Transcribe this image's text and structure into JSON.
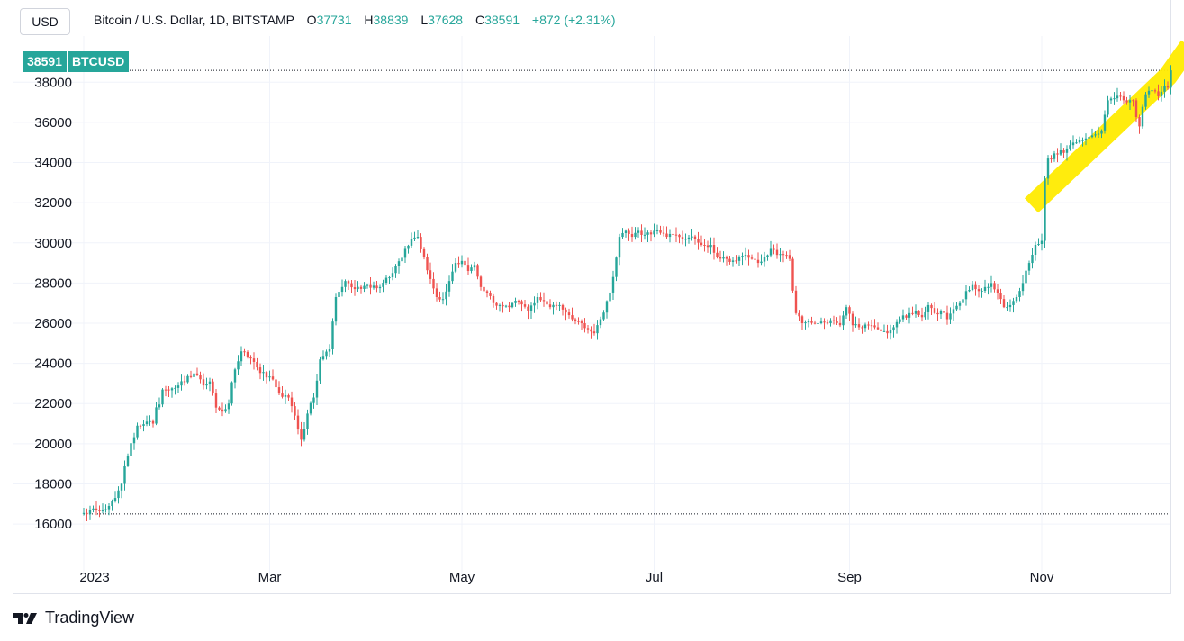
{
  "header": {
    "currency_button": "USD",
    "title": "Bitcoin / U.S. Dollar, 1D, BITSTAMP",
    "open_label": "O",
    "open_value": "37731",
    "high_label": "H",
    "high_value": "38839",
    "low_label": "L",
    "low_value": "37628",
    "close_label": "C",
    "close_value": "38591",
    "change": "+872 (+2.31%)"
  },
  "price_badge": {
    "price": "38591",
    "symbol": "BTCUSD"
  },
  "footer": {
    "brand": "TradingView"
  },
  "colors": {
    "up": "#26a69a",
    "down": "#ef5350",
    "highlight": "#ffeb00",
    "grid": "#f0f3fa"
  },
  "chart_data": {
    "type": "candlestick",
    "y_ticks": [
      16000,
      18000,
      20000,
      22000,
      24000,
      26000,
      28000,
      30000,
      32000,
      34000,
      36000,
      38000
    ],
    "ylim": [
      14300,
      40300
    ],
    "x_labels": [
      {
        "label": "2023",
        "index": 0
      },
      {
        "label": "Mar",
        "index": 59
      },
      {
        "label": "May",
        "index": 120
      },
      {
        "label": "Jul",
        "index": 181
      },
      {
        "label": "Sep",
        "index": 243
      },
      {
        "label": "Nov",
        "index": 304
      }
    ],
    "reference_lines": [
      38591,
      16500
    ],
    "anchors": [
      [
        0,
        16550
      ],
      [
        4,
        16700
      ],
      [
        8,
        16900
      ],
      [
        10,
        17300
      ],
      [
        12,
        18000
      ],
      [
        14,
        19400
      ],
      [
        17,
        20900
      ],
      [
        20,
        21100
      ],
      [
        22,
        21000
      ],
      [
        25,
        22700
      ],
      [
        30,
        22900
      ],
      [
        35,
        23500
      ],
      [
        38,
        22900
      ],
      [
        40,
        23100
      ],
      [
        42,
        21800
      ],
      [
        44,
        21600
      ],
      [
        46,
        22000
      ],
      [
        48,
        23700
      ],
      [
        50,
        24600
      ],
      [
        52,
        24300
      ],
      [
        55,
        23800
      ],
      [
        58,
        23300
      ],
      [
        60,
        23200
      ],
      [
        62,
        22500
      ],
      [
        65,
        22300
      ],
      [
        67,
        21400
      ],
      [
        69,
        20200
      ],
      [
        71,
        21500
      ],
      [
        73,
        22300
      ],
      [
        75,
        24200
      ],
      [
        78,
        24700
      ],
      [
        80,
        27300
      ],
      [
        83,
        28100
      ],
      [
        86,
        27700
      ],
      [
        90,
        27900
      ],
      [
        94,
        27800
      ],
      [
        98,
        28500
      ],
      [
        102,
        29700
      ],
      [
        104,
        30200
      ],
      [
        106,
        30300
      ],
      [
        108,
        29300
      ],
      [
        110,
        28200
      ],
      [
        112,
        27300
      ],
      [
        114,
        27200
      ],
      [
        116,
        28100
      ],
      [
        118,
        29000
      ],
      [
        120,
        29100
      ],
      [
        122,
        28600
      ],
      [
        124,
        28900
      ],
      [
        126,
        27800
      ],
      [
        128,
        27500
      ],
      [
        130,
        27000
      ],
      [
        132,
        26900
      ],
      [
        135,
        26800
      ],
      [
        138,
        27100
      ],
      [
        141,
        26600
      ],
      [
        144,
        27300
      ],
      [
        146,
        27100
      ],
      [
        148,
        26800
      ],
      [
        151,
        26900
      ],
      [
        154,
        26400
      ],
      [
        156,
        26100
      ],
      [
        158,
        26000
      ],
      [
        160,
        25700
      ],
      [
        162,
        25500
      ],
      [
        164,
        26200
      ],
      [
        166,
        27100
      ],
      [
        168,
        28300
      ],
      [
        170,
        30300
      ],
      [
        172,
        30600
      ],
      [
        174,
        30300
      ],
      [
        176,
        30600
      ],
      [
        178,
        30400
      ],
      [
        181,
        30600
      ],
      [
        183,
        30500
      ],
      [
        185,
        30300
      ],
      [
        188,
        30400
      ],
      [
        191,
        30200
      ],
      [
        194,
        30200
      ],
      [
        196,
        29900
      ],
      [
        199,
        29900
      ],
      [
        201,
        29300
      ],
      [
        204,
        29200
      ],
      [
        207,
        29100
      ],
      [
        210,
        29400
      ],
      [
        212,
        29200
      ],
      [
        214,
        29000
      ],
      [
        216,
        29300
      ],
      [
        218,
        29700
      ],
      [
        220,
        29400
      ],
      [
        222,
        29400
      ],
      [
        224,
        29200
      ],
      [
        226,
        26500
      ],
      [
        228,
        26000
      ],
      [
        230,
        26100
      ],
      [
        233,
        26000
      ],
      [
        236,
        26000
      ],
      [
        238,
        26100
      ],
      [
        240,
        25900
      ],
      [
        242,
        26800
      ],
      [
        244,
        25900
      ],
      [
        246,
        25800
      ],
      [
        249,
        25900
      ],
      [
        251,
        25800
      ],
      [
        253,
        25600
      ],
      [
        255,
        25500
      ],
      [
        257,
        25800
      ],
      [
        259,
        26200
      ],
      [
        262,
        26500
      ],
      [
        264,
        26600
      ],
      [
        266,
        26300
      ],
      [
        268,
        26900
      ],
      [
        270,
        26500
      ],
      [
        272,
        26600
      ],
      [
        274,
        26200
      ],
      [
        276,
        26700
      ],
      [
        278,
        27000
      ],
      [
        280,
        27600
      ],
      [
        282,
        27900
      ],
      [
        284,
        27600
      ],
      [
        286,
        27800
      ],
      [
        288,
        28000
      ],
      [
        290,
        27500
      ],
      [
        292,
        26800
      ],
      [
        294,
        26900
      ],
      [
        296,
        27300
      ],
      [
        298,
        28000
      ],
      [
        300,
        29000
      ],
      [
        302,
        29900
      ],
      [
        304,
        30100
      ],
      [
        305,
        33200
      ],
      [
        306,
        34200
      ],
      [
        309,
        34400
      ],
      [
        312,
        34700
      ],
      [
        315,
        35000
      ],
      [
        318,
        35200
      ],
      [
        321,
        35400
      ],
      [
        323,
        35600
      ],
      [
        325,
        37100
      ],
      [
        327,
        37200
      ],
      [
        329,
        37300
      ],
      [
        331,
        37000
      ],
      [
        333,
        37100
      ],
      [
        335,
        35800
      ],
      [
        337,
        37400
      ],
      [
        339,
        37600
      ],
      [
        341,
        37300
      ],
      [
        343,
        37800
      ],
      [
        344,
        37731
      ],
      [
        345,
        38591
      ]
    ]
  }
}
